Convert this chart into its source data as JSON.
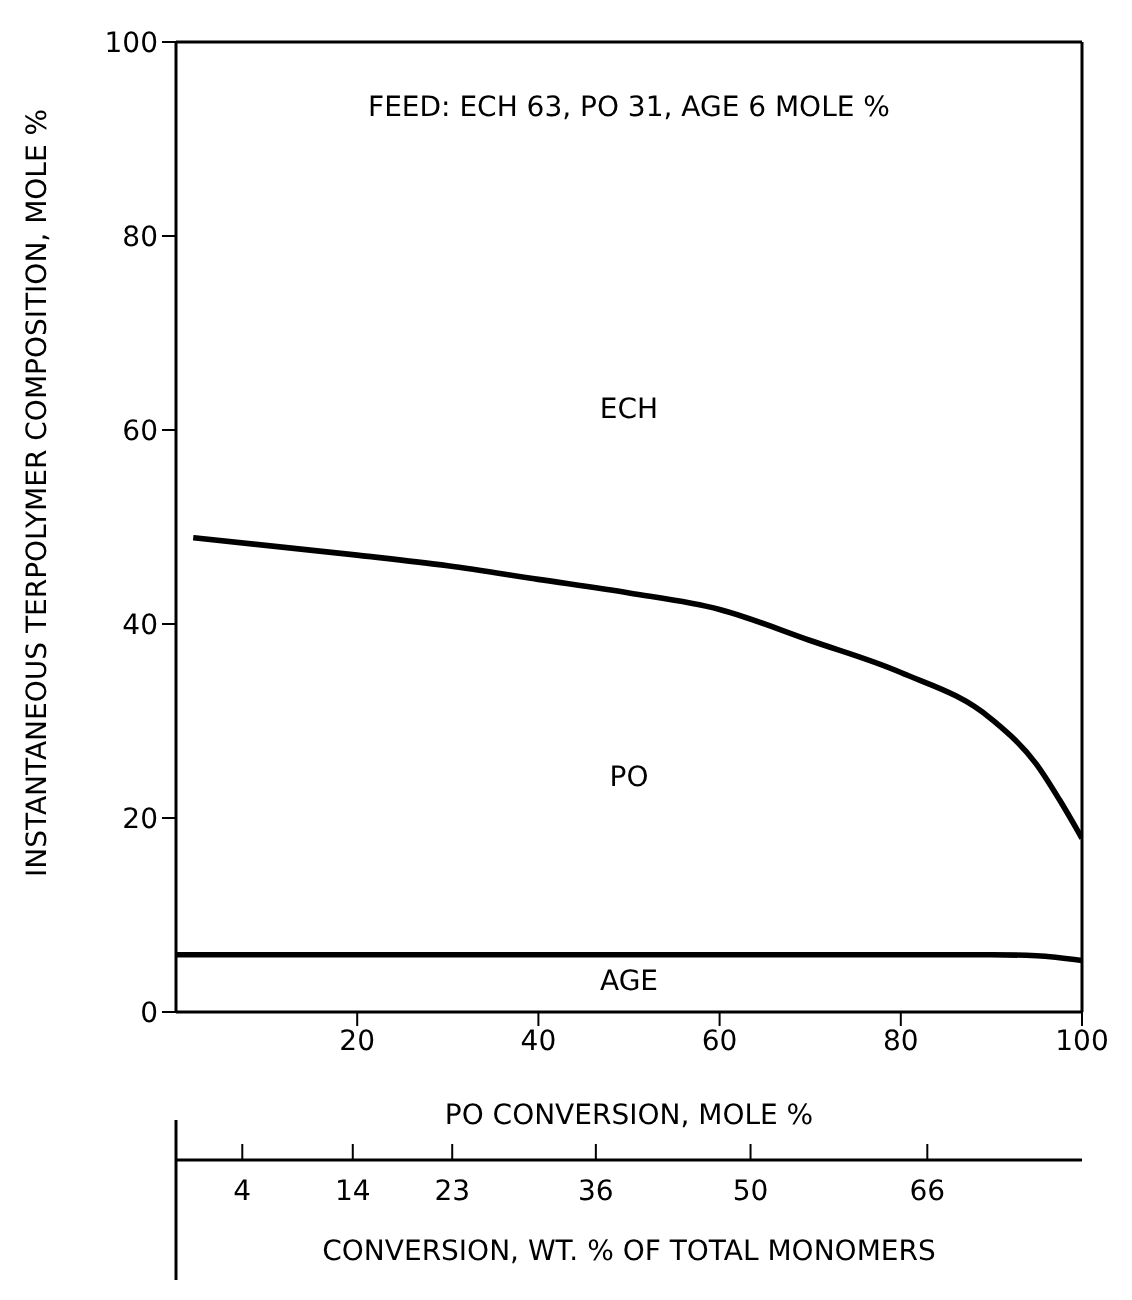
{
  "chart_data": {
    "type": "line",
    "ylabel": "INSTANTANEOUS TERPOLYMER COMPOSITION, MOLE %",
    "xlabel": "PO CONVERSION, MOLE %",
    "x2label": "CONVERSION, WT. % OF TOTAL MONOMERS",
    "xlim": [
      0,
      100
    ],
    "xticks": [
      20,
      40,
      60,
      80,
      100
    ],
    "ylim": [
      0,
      100
    ],
    "yticks": [
      0,
      20,
      40,
      60,
      80,
      100
    ],
    "x2lim": [
      -2,
      80
    ],
    "x2ticks": [
      4,
      14,
      23,
      36,
      50,
      66
    ],
    "series": [
      {
        "color": "#000000",
        "x": [
          1.9,
          20,
          30,
          40,
          50,
          60,
          70,
          80,
          90,
          95,
          97.5,
          100
        ],
        "values": [
          48.9,
          47.1,
          46,
          44.6,
          43.2,
          41.5,
          38.3,
          35,
          30.2,
          25.5,
          21.9,
          17.9
        ]
      },
      {
        "color": "#000000",
        "x": [
          0,
          20,
          40,
          60,
          80,
          90,
          95,
          100
        ],
        "values": [
          5.9,
          5.9,
          5.9,
          5.9,
          5.9,
          5.9,
          5.8,
          5.3
        ]
      }
    ],
    "annotations": [
      "FEED: ECH 63, PO 31, AGE 6 MOLE %",
      "ECH",
      "PO",
      "AGE"
    ],
    "legend": false,
    "marker": "none",
    "line_style": "solid"
  }
}
